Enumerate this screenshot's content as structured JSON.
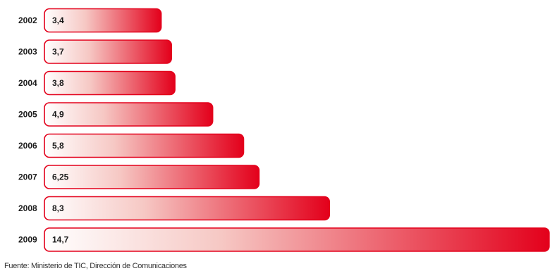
{
  "chart_data": {
    "type": "bar",
    "orientation": "horizontal",
    "categories": [
      "2002",
      "2003",
      "2004",
      "2005",
      "2006",
      "2007",
      "2008",
      "2009"
    ],
    "values": [
      3.4,
      3.7,
      3.8,
      4.9,
      5.8,
      6.25,
      8.3,
      14.7
    ],
    "value_labels": [
      "3,4",
      "3,7",
      "3,8",
      "4,9",
      "5,8",
      "6,25",
      "8,3",
      "14,7"
    ],
    "title": "",
    "xlabel": "",
    "ylabel": "",
    "grid": false,
    "colors": {
      "bar_start": "#ffffff",
      "bar_end": "#e3001b",
      "bar_stroke": "#e3001b",
      "text": "#1a1a1a"
    }
  },
  "source": "Fuente: Ministerio de TIC, Dirección de Comunicaciones"
}
